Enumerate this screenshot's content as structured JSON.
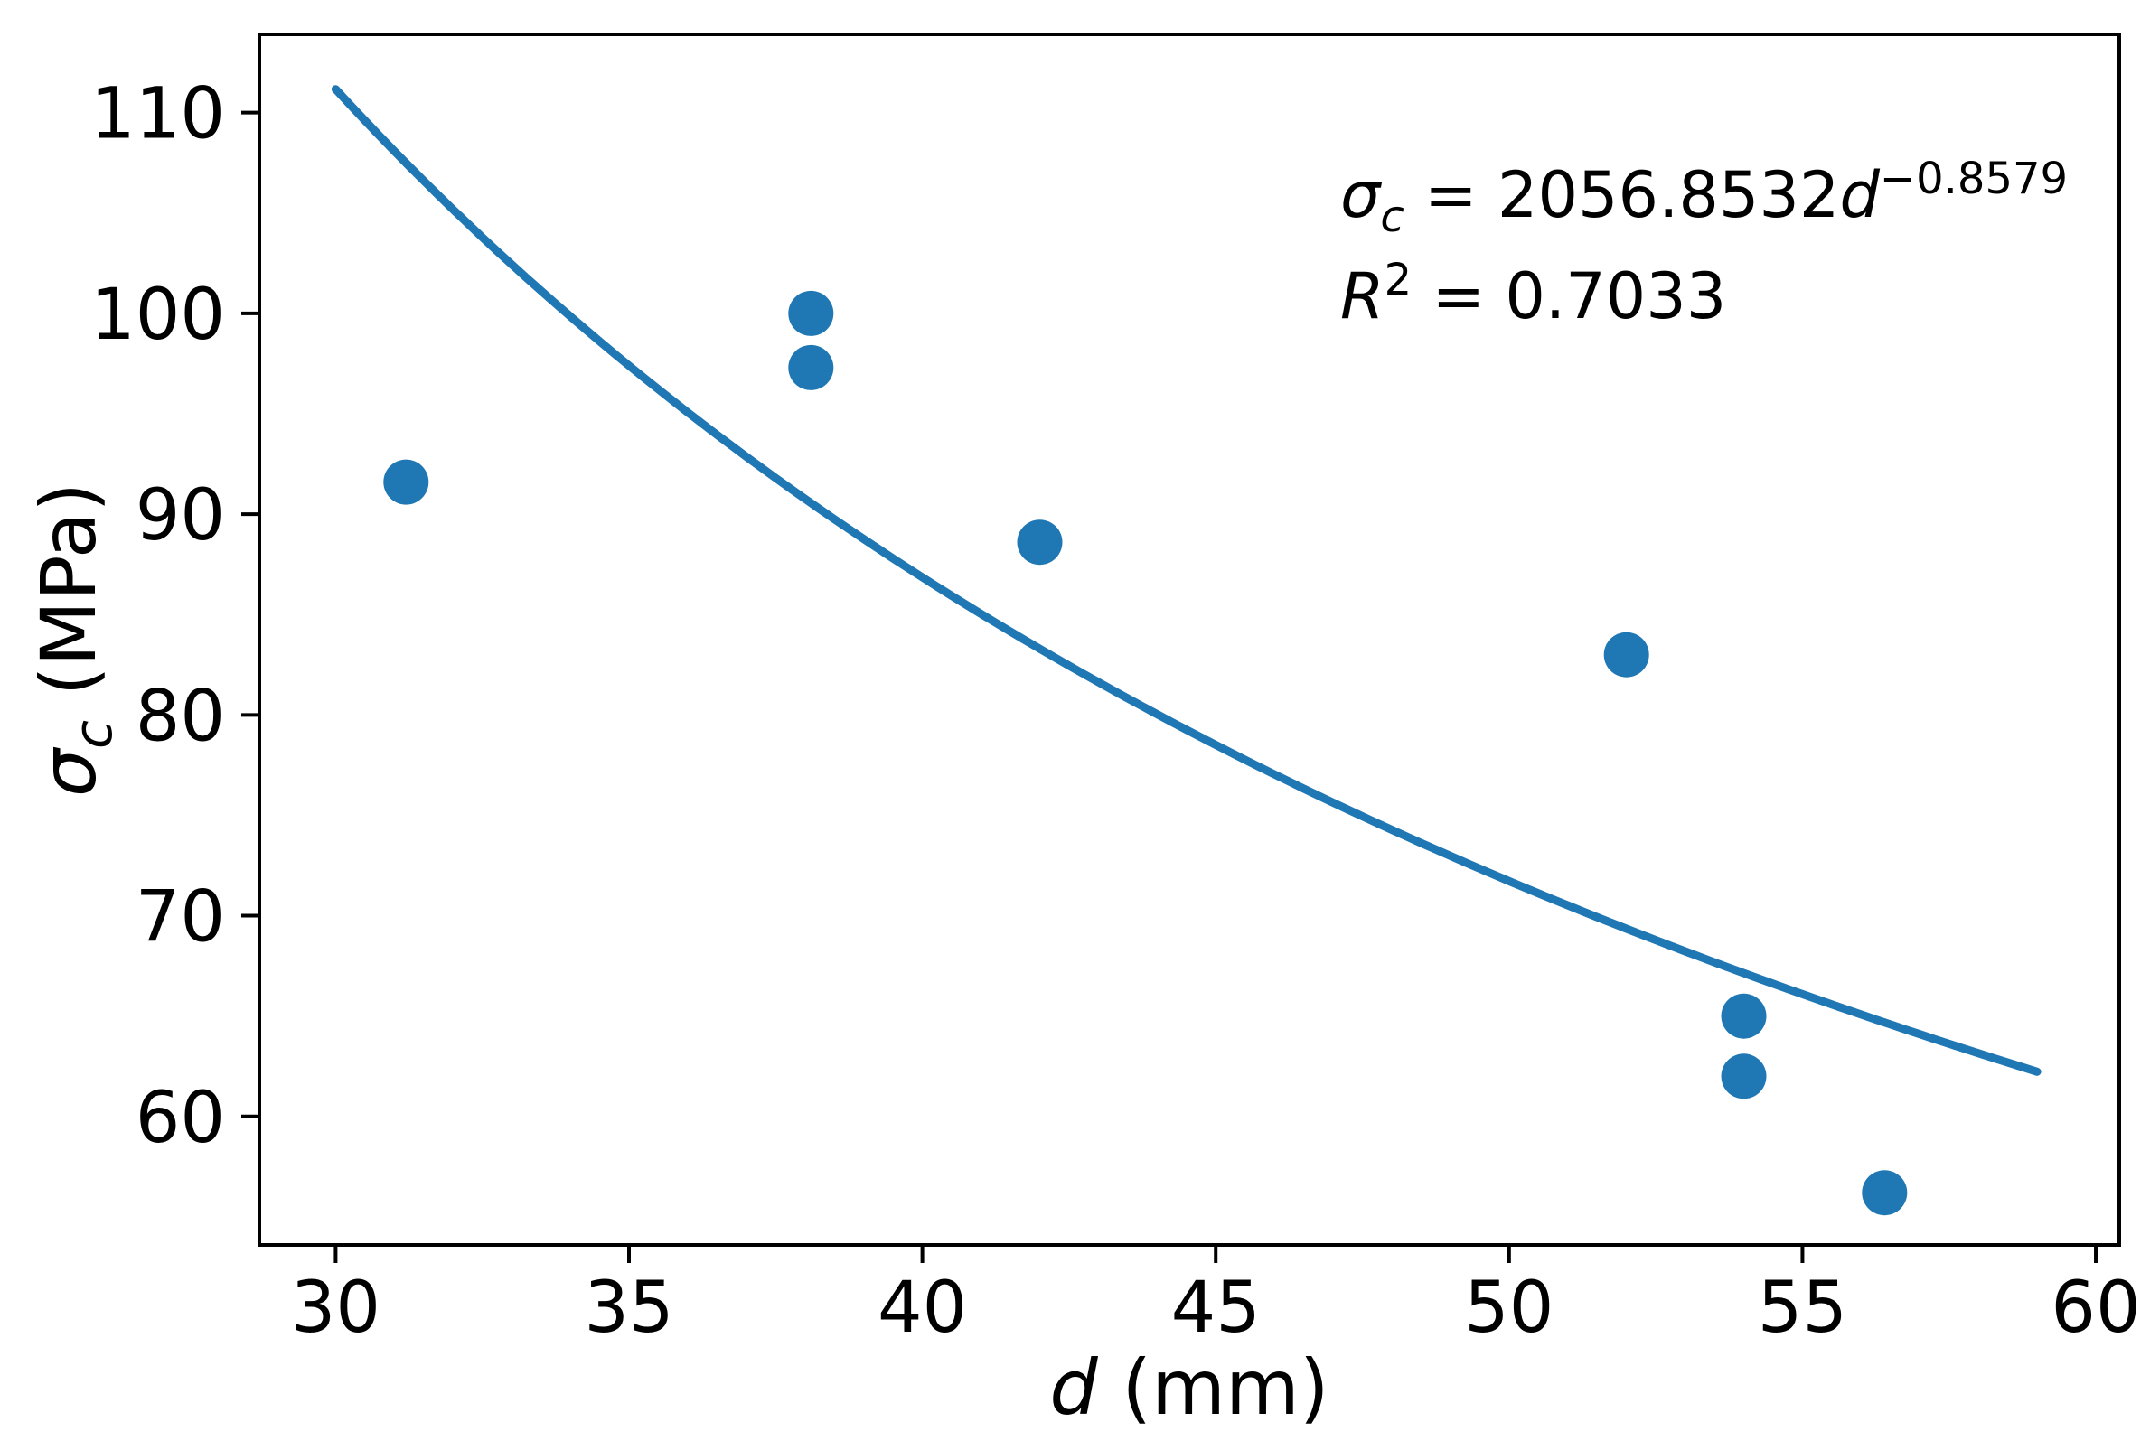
{
  "figure": {
    "background": "#ffffff",
    "accent_color": "#1f77b4",
    "axis_color": "#000000",
    "text_color": "#000000"
  },
  "chart_data": {
    "type": "scatter",
    "title": "",
    "xlabel": "d (mm)",
    "ylabel": "σc (MPa)",
    "xlabel_var": "d",
    "xlabel_unit": " (mm)",
    "ylabel_symbol": "σ",
    "ylabel_sub": "c",
    "ylabel_unit": " (MPa)",
    "xlim": [
      28.7,
      60.4
    ],
    "ylim": [
      53.6,
      113.9
    ],
    "x_ticks": [
      30,
      35,
      40,
      45,
      50,
      55,
      60
    ],
    "y_ticks": [
      60,
      70,
      80,
      90,
      100,
      110
    ],
    "grid": false,
    "legend": "none",
    "points": [
      [
        31.2,
        91.6
      ],
      [
        38.1,
        100.0
      ],
      [
        38.1,
        97.3
      ],
      [
        42.0,
        88.6
      ],
      [
        52.0,
        83.0
      ],
      [
        54.0,
        65.0
      ],
      [
        54.0,
        62.0
      ],
      [
        56.4,
        56.2
      ]
    ],
    "fit": {
      "model": "power",
      "coefficient": 2056.8532,
      "exponent": -0.8579,
      "d_start": 30.0,
      "d_end": 59.0,
      "r_squared": 0.7033
    },
    "annotation": {
      "line1": {
        "sigma": "σ",
        "sub": "c",
        "coefficient_text": " = 2056.8532",
        "variable": "d",
        "exponent_text": "−0.8579"
      },
      "line2": {
        "r": "R",
        "sup": "2",
        "value_text": " = 0.7033"
      }
    }
  }
}
